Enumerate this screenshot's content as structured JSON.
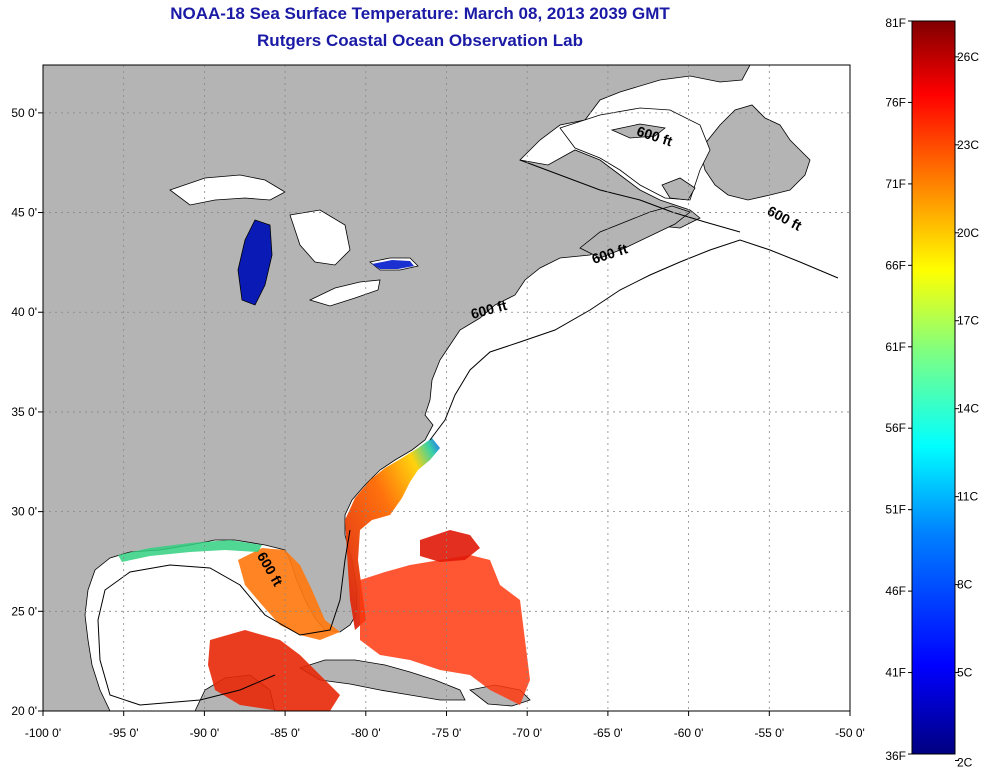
{
  "header": {
    "title": "NOAA-18 Sea Surface Temperature:  March 08, 2013 2039 GMT",
    "subtitle": "Rutgers Coastal Ocean Observation Lab"
  },
  "map": {
    "lon_range": [
      -100,
      -50
    ],
    "lat_range": [
      20,
      52.4
    ],
    "x_ticks": [
      {
        "value": -100,
        "label": "-100 0'"
      },
      {
        "value": -95,
        "label": "-95 0'"
      },
      {
        "value": -90,
        "label": "-90 0'"
      },
      {
        "value": -85,
        "label": "-85 0'"
      },
      {
        "value": -80,
        "label": "-80 0'"
      },
      {
        "value": -75,
        "label": "-75 0'"
      },
      {
        "value": -70,
        "label": "-70 0'"
      },
      {
        "value": -65,
        "label": "-65 0'"
      },
      {
        "value": -60,
        "label": "-60 0'"
      },
      {
        "value": -55,
        "label": "-55 0'"
      },
      {
        "value": -50,
        "label": "-50 0'"
      }
    ],
    "y_ticks": [
      {
        "value": 20,
        "label": "20 0'"
      },
      {
        "value": 25,
        "label": "25 0'"
      },
      {
        "value": 30,
        "label": "30 0'"
      },
      {
        "value": 35,
        "label": "35 0'"
      },
      {
        "value": 40,
        "label": "40 0'"
      },
      {
        "value": 45,
        "label": "45 0'"
      },
      {
        "value": 50,
        "label": "50 0'"
      }
    ],
    "grid": true,
    "contour_labels": [
      {
        "text": "600 ft",
        "lon": -62.2,
        "lat": 48.6,
        "angle": 18
      },
      {
        "text": "600 ft",
        "lon": -54.2,
        "lat": 44.5,
        "angle": 28
      },
      {
        "text": "600 ft",
        "lon": -64.8,
        "lat": 42.7,
        "angle": -18
      },
      {
        "text": "600 ft",
        "lon": -72.3,
        "lat": 39.9,
        "angle": -15
      },
      {
        "text": "600 ft",
        "lon": -86.2,
        "lat": 27.0,
        "angle": 60
      }
    ],
    "colors": {
      "land": "#b4b4b4",
      "ocean_no_data": "#ffffff",
      "coastline": "#000000",
      "grid": "#888888"
    }
  },
  "colorbar": {
    "fahrenheit_labels": [
      "81F",
      "76F",
      "71F",
      "66F",
      "61F",
      "56F",
      "51F",
      "46F",
      "41F",
      "36F"
    ],
    "celsius_labels": [
      "26C",
      "23C",
      "20C",
      "17C",
      "14C",
      "11C",
      "8C",
      "5C",
      "2C"
    ],
    "f_range": [
      36,
      81
    ],
    "colors": [
      "#000080",
      "#0000ff",
      "#0080ff",
      "#00ffff",
      "#80ff80",
      "#ffff00",
      "#ff8000",
      "#ff0000",
      "#800000"
    ]
  }
}
